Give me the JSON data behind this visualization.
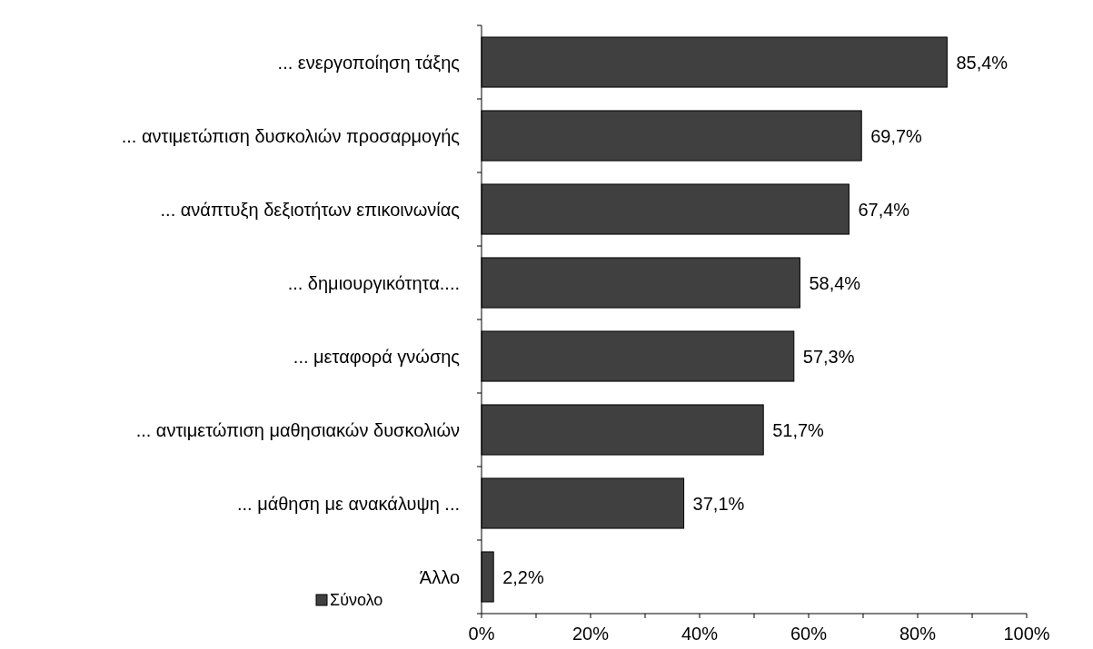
{
  "chart_data": {
    "type": "bar",
    "orientation": "horizontal",
    "categories": [
      "... ενεργοποίηση τάξης",
      "... αντιμετώπιση δυσκολιών προσαρμογής",
      "... ανάπτυξη δεξιοτήτων επικοινωνίας",
      "... δημιουργικότητα....",
      "... μεταφορά γνώσης",
      "... αντιμετώπιση μαθησιακών δυσκολιών",
      "... μάθηση με ανακάλυψη ...",
      "Άλλο"
    ],
    "series": [
      {
        "name": "Σύνολο",
        "color": "#404040",
        "values": [
          85.4,
          69.7,
          67.4,
          58.4,
          57.3,
          51.7,
          37.1,
          2.2
        ],
        "value_labels": [
          "85,4%",
          "69,7%",
          "67,4%",
          "58,4%",
          "57,3%",
          "51,7%",
          "37,1%",
          "2,2%"
        ]
      }
    ],
    "xlim": [
      0,
      100
    ],
    "xticks": [
      {
        "value": 0,
        "label": "0%"
      },
      {
        "value": 10,
        "label": null
      },
      {
        "value": 20,
        "label": "20%"
      },
      {
        "value": 30,
        "label": null
      },
      {
        "value": 40,
        "label": "40%"
      },
      {
        "value": 50,
        "label": null
      },
      {
        "value": 60,
        "label": "60%"
      },
      {
        "value": 70,
        "label": null
      },
      {
        "value": 80,
        "label": "80%"
      },
      {
        "value": 90,
        "label": null
      },
      {
        "value": 100,
        "label": "100%"
      }
    ],
    "grid": false,
    "legend": "bottom left"
  }
}
